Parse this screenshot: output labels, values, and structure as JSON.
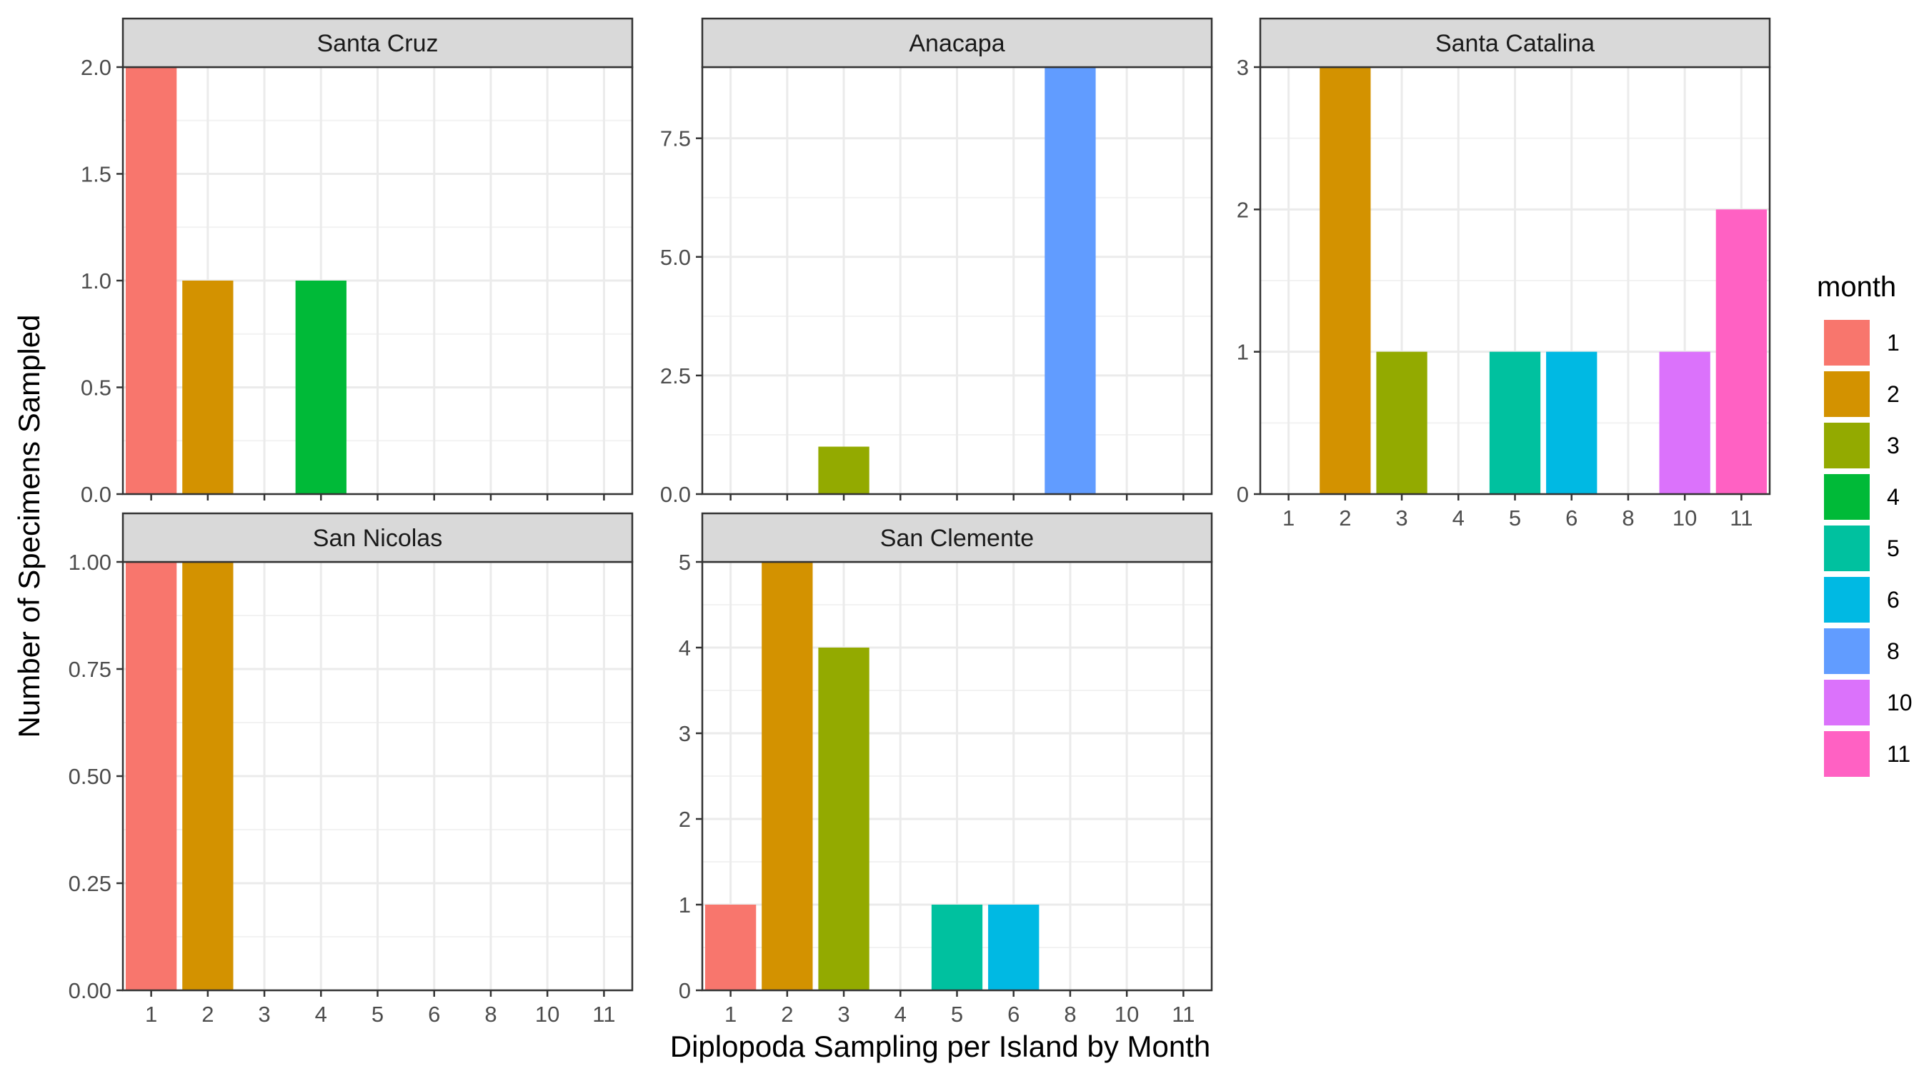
{
  "chart_data": {
    "type": "bar",
    "title": "",
    "xlabel": "Diplopoda Sampling per Island by Month",
    "ylabel": "Number of Specimens Sampled",
    "categories": [
      "1",
      "2",
      "3",
      "4",
      "5",
      "6",
      "8",
      "10",
      "11"
    ],
    "grid": true,
    "legend": {
      "title": "month",
      "position": "right",
      "entries": [
        {
          "label": "1",
          "color": "#F8766D"
        },
        {
          "label": "2",
          "color": "#D39200"
        },
        {
          "label": "3",
          "color": "#93AA00"
        },
        {
          "label": "4",
          "color": "#00BA38"
        },
        {
          "label": "5",
          "color": "#00C19F"
        },
        {
          "label": "6",
          "color": "#00B9E3"
        },
        {
          "label": "8",
          "color": "#619CFF"
        },
        {
          "label": "10",
          "color": "#DB72FB"
        },
        {
          "label": "11",
          "color": "#FF61C3"
        }
      ]
    },
    "panels": [
      {
        "title": "Santa Cruz",
        "ylim": [
          0,
          2
        ],
        "y_ticks": [
          "0.0",
          "0.5",
          "1.0",
          "1.5",
          "2.0"
        ],
        "show_x_labels": false,
        "values": [
          2,
          1,
          0,
          1,
          0,
          0,
          0,
          0,
          0
        ]
      },
      {
        "title": "Anacapa",
        "ylim": [
          0,
          9
        ],
        "y_ticks": [
          "0.0",
          "2.5",
          "5.0",
          "7.5"
        ],
        "show_x_labels": false,
        "values": [
          0,
          0,
          1,
          0,
          0,
          0,
          9,
          0,
          0
        ]
      },
      {
        "title": "Santa Catalina",
        "ylim": [
          0,
          3
        ],
        "y_ticks": [
          "0",
          "1",
          "2",
          "3"
        ],
        "show_x_labels": true,
        "values": [
          0,
          3,
          1,
          0,
          1,
          1,
          0,
          1,
          2
        ]
      },
      {
        "title": "San Nicolas",
        "ylim": [
          0,
          1
        ],
        "y_ticks": [
          "0.00",
          "0.25",
          "0.50",
          "0.75",
          "1.00"
        ],
        "show_x_labels": true,
        "values": [
          1,
          1,
          0,
          0,
          0,
          0,
          0,
          0,
          0
        ]
      },
      {
        "title": "San Clemente",
        "ylim": [
          0,
          5
        ],
        "y_ticks": [
          "0",
          "1",
          "2",
          "3",
          "4",
          "5"
        ],
        "show_x_labels": true,
        "values": [
          1,
          5,
          4,
          0,
          1,
          1,
          0,
          0,
          0
        ]
      }
    ]
  }
}
